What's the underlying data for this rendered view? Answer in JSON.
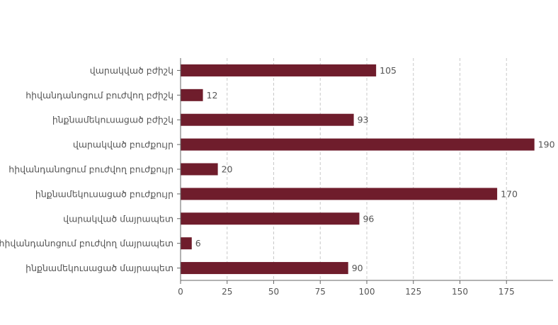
{
  "chart_data": {
    "type": "bar",
    "orientation": "horizontal",
    "categories": [
      "վարակված բժիշկ",
      "հիվանդանոցում բուժվող բժիշկ",
      "ինքնամեկուսացած բժիշկ",
      "վարակված բուժքույր",
      "հիվանդանոցում բուժվող բուժքույր",
      "ինքնամեկուսացած բուժքույր",
      "վարակված մայրապետ",
      "հիվանդանոցում բուժվող մայրապետ",
      "ինքնամեկուսացած մայրապետ"
    ],
    "values": [
      105,
      12,
      93,
      190,
      20,
      170,
      96,
      6,
      90
    ],
    "value_labels": [
      "105",
      "12",
      "93",
      "190",
      "20",
      "170",
      "96",
      "6",
      "90"
    ],
    "x_ticks": [
      "0",
      "25",
      "50",
      "75",
      "100",
      "125",
      "150",
      "175"
    ],
    "x_tick_values": [
      0,
      25,
      50,
      75,
      100,
      125,
      150,
      175
    ],
    "xlim": [
      0,
      200
    ],
    "grid": "vertical dashed",
    "bar_color": "#6f1d2c",
    "grid_color": "#c8c8c8",
    "axis_color": "#666666",
    "text_color": "#555555"
  }
}
